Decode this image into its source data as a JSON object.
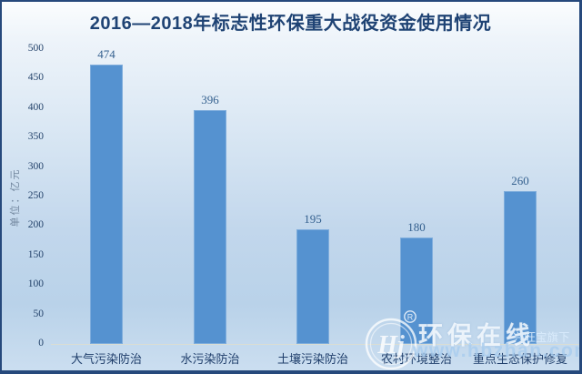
{
  "title": "2016—2018年标志性环保重大战役资金使用情况",
  "chart_data": {
    "type": "bar",
    "title": "2016—2018年标志性环保重大战役资金使用情况",
    "categories": [
      "大气污染防治",
      "水污染防治",
      "土壤污染防治",
      "农村环境整治",
      "重点生态保护修复"
    ],
    "values": [
      474,
      396,
      195,
      180,
      260
    ],
    "xlabel": "",
    "ylabel": "单位：亿元",
    "ylim": [
      0,
      500
    ],
    "ytick_interval": 50,
    "grid": false,
    "legend": "none",
    "bar_color": "#5592d0",
    "value_label_color": "#35618f"
  },
  "watermark": {
    "logo_monogram": "Hj",
    "registered_symbol": "R",
    "brand": "环保在线",
    "affiliation": "兴旺宝旗下",
    "url": "www.hbzhan.com"
  },
  "colors": {
    "frame_border": "#26497c",
    "title_text": "#1f4374",
    "axis_text": "#24436b",
    "unit_text": "#72879f",
    "category_text": "#1f3e6b",
    "bar_fill": "#5592d0",
    "background_top": "#fbfdfe",
    "background_bottom": "#b9d2e9"
  }
}
